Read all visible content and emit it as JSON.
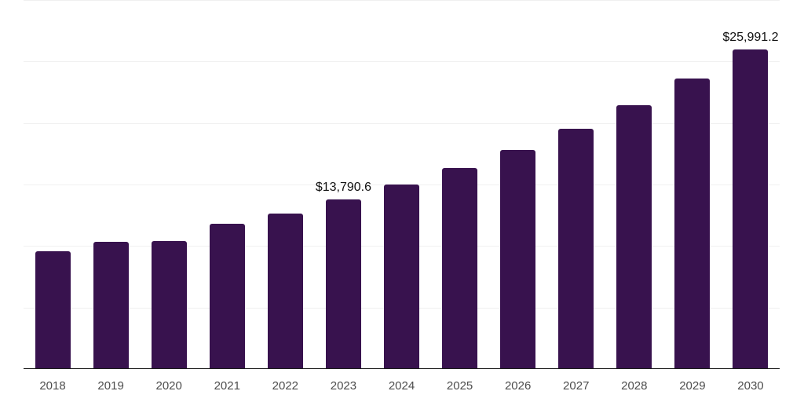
{
  "chart_data": {
    "type": "bar",
    "categories": [
      "2018",
      "2019",
      "2020",
      "2021",
      "2022",
      "2023",
      "2024",
      "2025",
      "2026",
      "2027",
      "2028",
      "2029",
      "2030"
    ],
    "values": [
      9580,
      10330,
      10420,
      11800,
      12640,
      13790.6,
      14970,
      16340,
      17830,
      19550,
      21450,
      23600,
      25991.2
    ],
    "data_labels": [
      "",
      "",
      "",
      "",
      "",
      "$13,790.6",
      "",
      "",
      "",
      "",
      "",
      "",
      "$25,991.2"
    ],
    "title": "",
    "xlabel": "",
    "ylabel": "",
    "ylim": [
      0,
      30000
    ],
    "gridline_interval": 5000,
    "grid": "horizontal",
    "legend": "none"
  },
  "colors": {
    "bar": "#38124e",
    "axis_line": "#1a1a1a",
    "gridline": "#f0f0f0",
    "tick_label": "#4d4d4d",
    "data_label": "#111111",
    "background": "#ffffff"
  }
}
